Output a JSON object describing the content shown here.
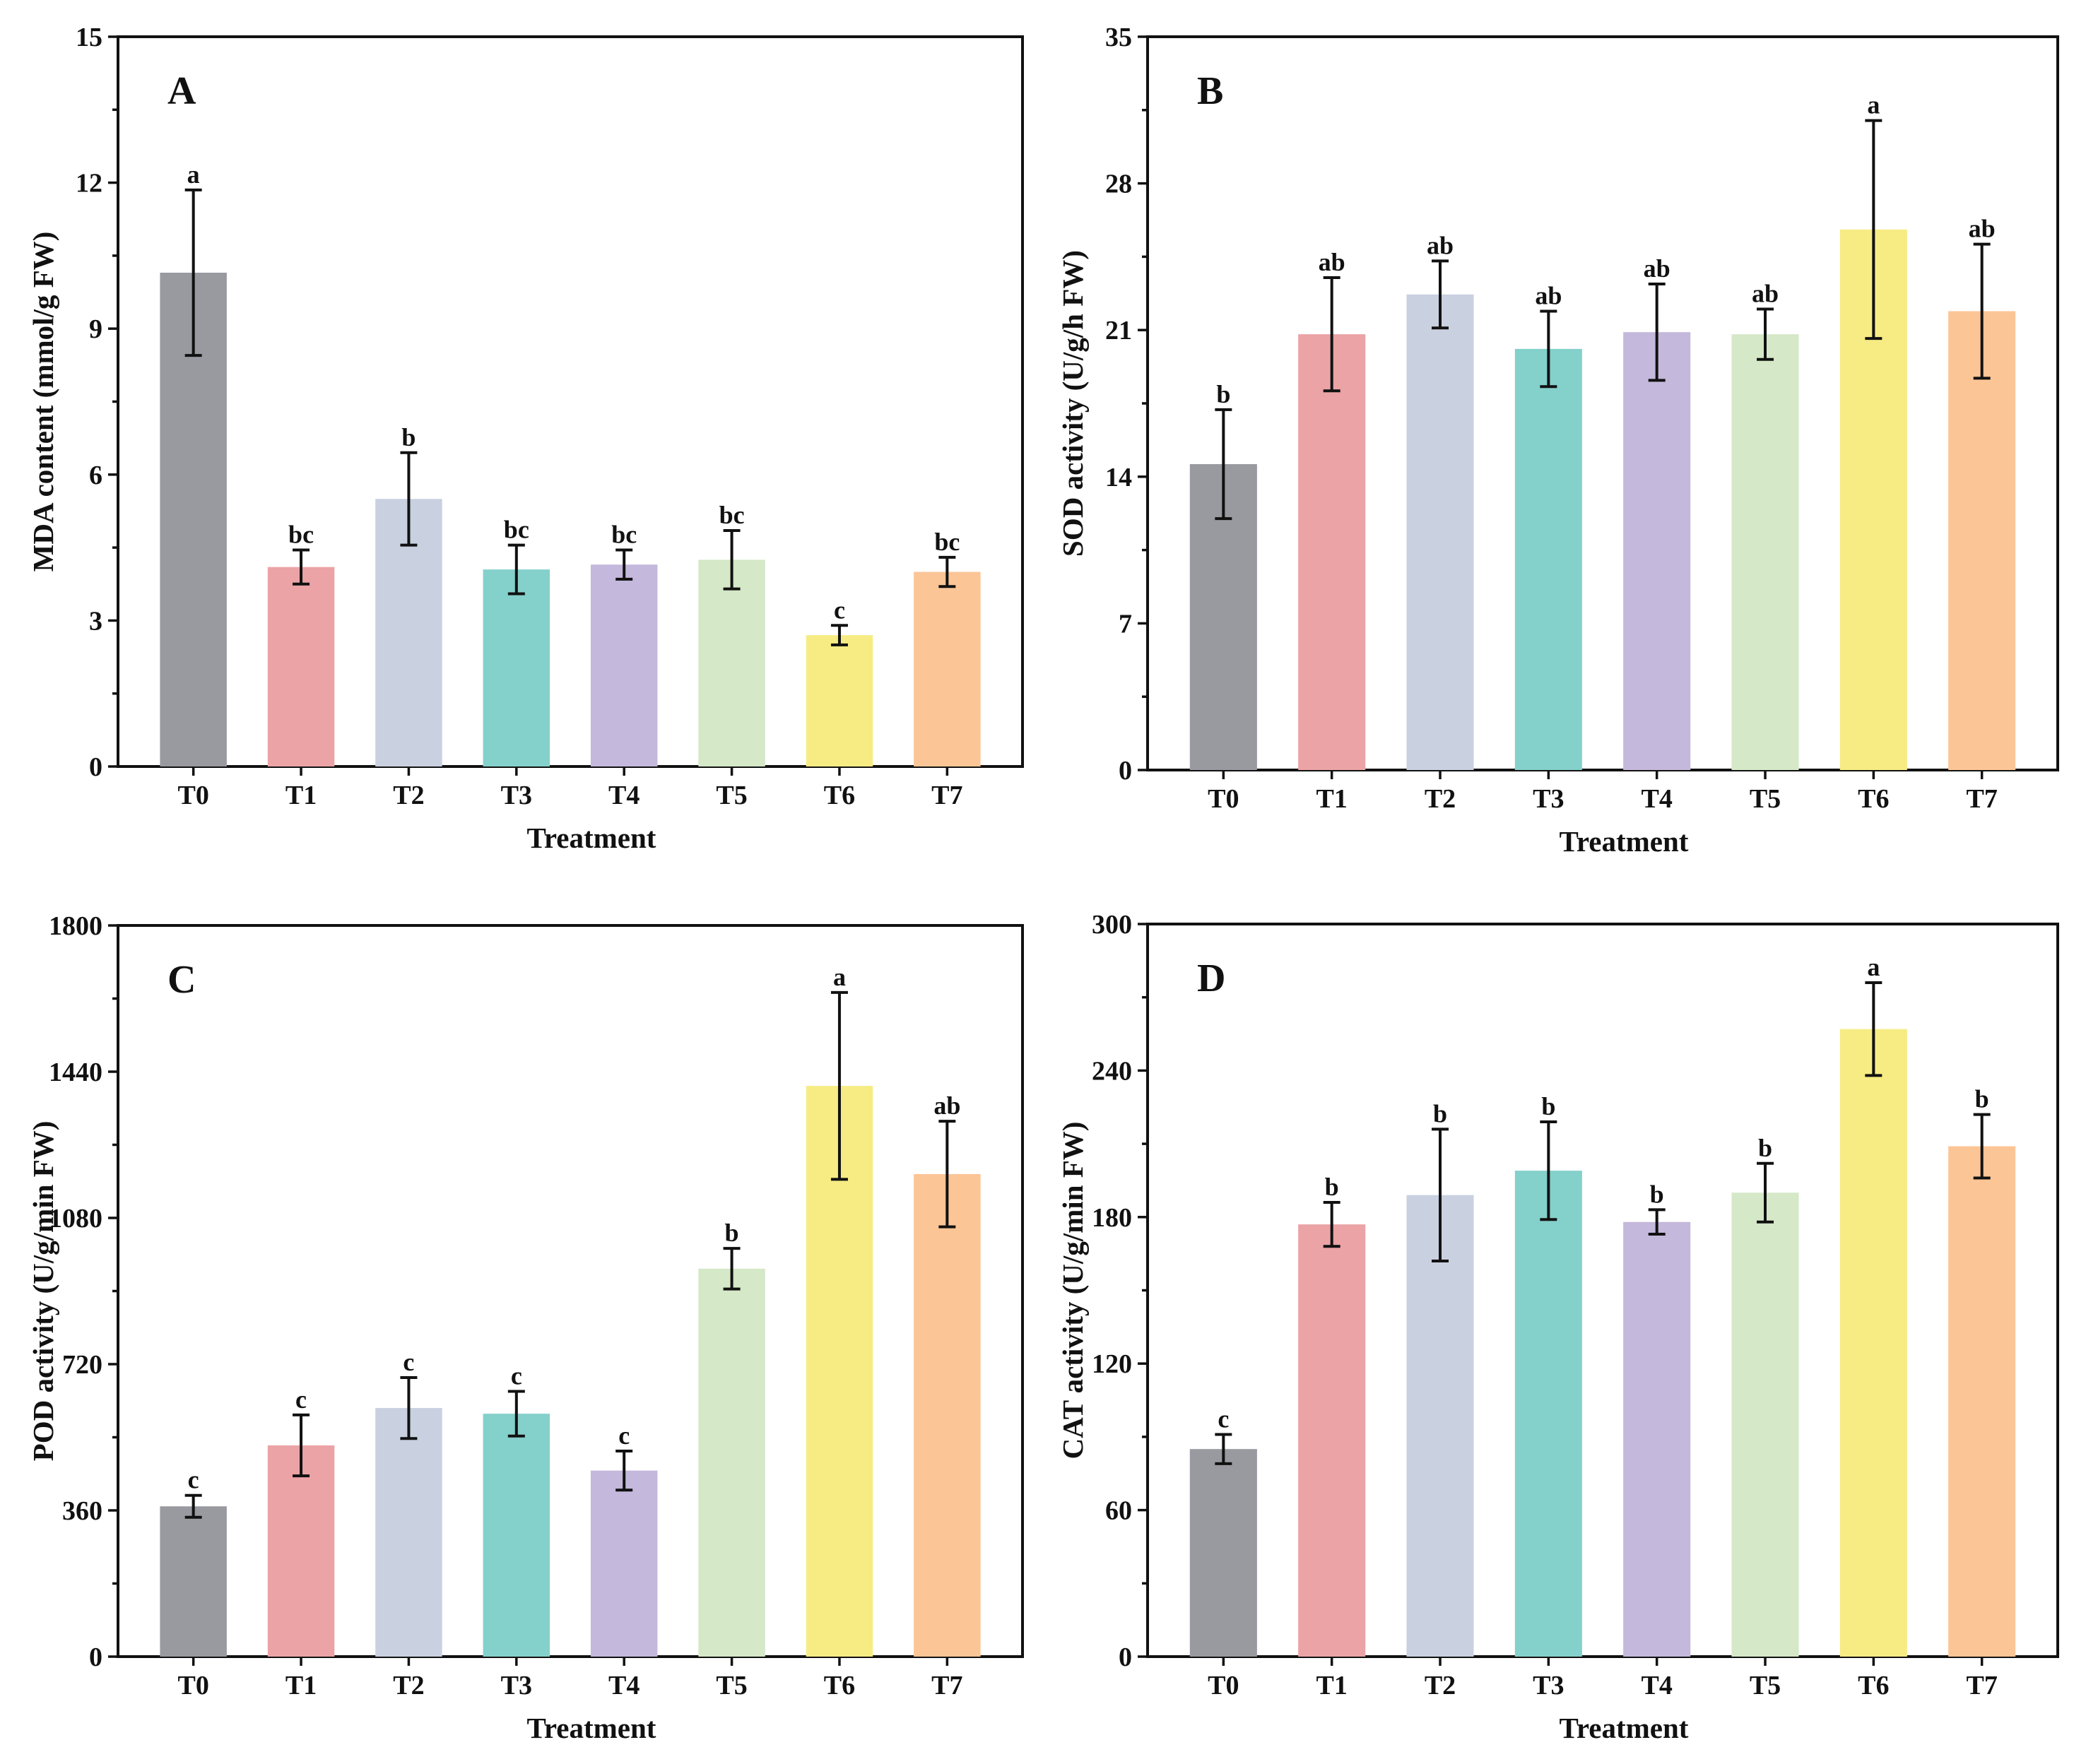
{
  "figure": {
    "categories": [
      "T0",
      "T1",
      "T2",
      "T3",
      "T4",
      "T5",
      "T6",
      "T7"
    ],
    "colors": [
      "#999aa0",
      "#eba3a6",
      "#c9d0e0",
      "#84d0cb",
      "#c4b8dc",
      "#d5e8c7",
      "#f7ec84",
      "#fcc596"
    ]
  },
  "chart_data": [
    {
      "panel_label": "A",
      "type": "bar",
      "title": "",
      "xlabel": "Treatment",
      "ylabel": "MDA content (mmol/g FW)",
      "ylim": [
        0,
        15
      ],
      "yticks": [
        "0",
        "3",
        "6",
        "9",
        "12",
        "15"
      ],
      "categories": [
        "T0",
        "T1",
        "T2",
        "T3",
        "T4",
        "T5",
        "T6",
        "T7"
      ],
      "values": [
        10.15,
        4.1,
        5.5,
        4.05,
        4.15,
        4.25,
        2.7,
        4.0
      ],
      "errors": [
        1.7,
        0.35,
        0.95,
        0.5,
        0.3,
        0.6,
        0.2,
        0.3
      ],
      "significance": [
        "a",
        "bc",
        "b",
        "bc",
        "bc",
        "bc",
        "c",
        "bc"
      ]
    },
    {
      "panel_label": "B",
      "type": "bar",
      "title": "",
      "xlabel": "Treatment",
      "ylabel": "SOD activity (U/g/h FW)",
      "ylim": [
        0,
        35
      ],
      "yticks": [
        "0",
        "7",
        "14",
        "21",
        "28",
        "35"
      ],
      "categories": [
        "T0",
        "T1",
        "T2",
        "T3",
        "T4",
        "T5",
        "T6",
        "T7"
      ],
      "values": [
        14.6,
        20.8,
        22.7,
        20.1,
        20.9,
        20.8,
        25.8,
        21.9
      ],
      "errors": [
        2.6,
        2.7,
        1.6,
        1.8,
        2.3,
        1.2,
        5.2,
        3.2
      ],
      "significance": [
        "b",
        "ab",
        "ab",
        "ab",
        "ab",
        "ab",
        "a",
        "ab"
      ]
    },
    {
      "panel_label": "C",
      "type": "bar",
      "title": "",
      "xlabel": "Treatment",
      "ylabel": "POD activity (U/g/min FW)",
      "ylim": [
        0,
        1800
      ],
      "yticks": [
        "0",
        "360",
        "720",
        "1080",
        "1440",
        "1800"
      ],
      "categories": [
        "T0",
        "T1",
        "T2",
        "T3",
        "T4",
        "T5",
        "T6",
        "T7"
      ],
      "values": [
        370,
        520,
        612,
        598,
        458,
        955,
        1405,
        1188
      ],
      "errors": [
        27,
        75,
        75,
        55,
        48,
        50,
        230,
        130
      ],
      "significance": [
        "c",
        "c",
        "c",
        "c",
        "c",
        "b",
        "a",
        "ab"
      ]
    },
    {
      "panel_label": "D",
      "type": "bar",
      "title": "",
      "xlabel": "Treatment",
      "ylabel": "CAT activity (U/g/min FW)",
      "ylim": [
        0,
        300
      ],
      "yticks": [
        "0",
        "60",
        "120",
        "180",
        "240",
        "300"
      ],
      "categories": [
        "T0",
        "T1",
        "T2",
        "T3",
        "T4",
        "T5",
        "T6",
        "T7"
      ],
      "values": [
        85,
        177,
        189,
        199,
        178,
        190,
        257,
        209
      ],
      "errors": [
        6,
        9,
        27,
        20,
        5,
        12,
        19,
        13
      ],
      "significance": [
        "c",
        "b",
        "b",
        "b",
        "b",
        "b",
        "a",
        "b"
      ]
    }
  ]
}
